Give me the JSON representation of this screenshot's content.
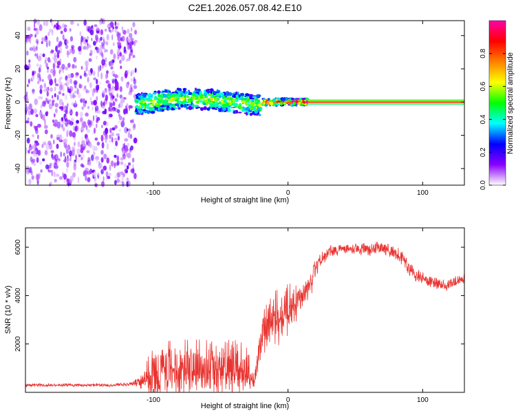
{
  "title": "C2E1.2026.057.08.42.E10",
  "colors": {
    "snr_line": "#e8332f",
    "axis": "#000000",
    "background": "#ffffff"
  },
  "chart_data": [
    {
      "type": "heatmap",
      "name": "spectrogram",
      "xlabel": "Height of straight line (km)",
      "ylabel": "Frequency (Hz)",
      "xlim": [
        -195,
        131
      ],
      "ylim": [
        -50,
        49
      ],
      "x_ticks": [
        -100,
        0,
        100
      ],
      "x_tick_labels": [
        "-100",
        "0",
        "100"
      ],
      "y_ticks": [
        -40,
        -20,
        0,
        20,
        40
      ],
      "y_tick_labels": [
        "-40",
        "-20",
        "0",
        "20",
        "40"
      ],
      "colorbar": {
        "label": "Normalized spectral amplitude",
        "range": [
          0,
          1
        ],
        "ticks": [
          0.0,
          0.2,
          0.4,
          0.6,
          0.8
        ],
        "tick_labels": [
          "0.0",
          "0.2",
          "0.4",
          "0.6",
          "0.8"
        ],
        "colormap": [
          "#ffffff",
          "#8a00ff",
          "#0000ff",
          "#00ffff",
          "#00ff00",
          "#ffff00",
          "#ff8000",
          "#ff0000",
          "#ff00aa"
        ]
      },
      "regions": [
        {
          "name": "noise",
          "x_range": [
            -195,
            -113
          ],
          "f_range": [
            -50,
            49
          ],
          "amplitude": 0.15
        },
        {
          "name": "broad-signal",
          "x_range": [
            -113,
            -20
          ],
          "f_center": 0,
          "f_halfwidth": 6,
          "amplitude": 0.35
        },
        {
          "name": "narrowing-signal",
          "x_range": [
            -20,
            15
          ],
          "f_center": 0,
          "f_halfwidth": 2,
          "amplitude": 0.7
        },
        {
          "name": "steady-tone",
          "x_range": [
            15,
            131
          ],
          "f_center": 0,
          "f_halfwidth": 1.5,
          "amplitude": 0.95
        }
      ]
    },
    {
      "type": "line",
      "name": "snr",
      "xlabel": "Height of straight line (km)",
      "ylabel": "SNR (10 * v/v)",
      "xlim": [
        -195,
        131
      ],
      "ylim": [
        0,
        6800
      ],
      "x_ticks": [
        -100,
        0,
        100
      ],
      "x_tick_labels": [
        "-100",
        "0",
        "100"
      ],
      "y_ticks": [
        2000,
        4000,
        6000
      ],
      "y_tick_labels": [
        "2000",
        "4000",
        "6000"
      ],
      "series": [
        {
          "name": "SNR",
          "x": [
            -195,
            -160,
            -130,
            -115,
            -108,
            -100,
            -85,
            -70,
            -55,
            -40,
            -30,
            -25,
            -20,
            -15,
            -10,
            -5,
            0,
            5,
            10,
            15,
            20,
            25,
            30,
            40,
            50,
            60,
            65,
            70,
            75,
            80,
            85,
            90,
            95,
            100,
            110,
            120,
            131
          ],
          "y": [
            300,
            300,
            300,
            350,
            500,
            700,
            1000,
            1050,
            1000,
            950,
            950,
            400,
            2500,
            2800,
            3000,
            3200,
            3500,
            3600,
            4000,
            4200,
            5000,
            5500,
            5800,
            5950,
            5950,
            5900,
            6000,
            5950,
            5850,
            5700,
            5600,
            5100,
            4900,
            4700,
            4500,
            4450,
            4700
          ],
          "noise": [
            80,
            80,
            80,
            100,
            400,
            1400,
            1500,
            1400,
            1300,
            1300,
            1100,
            300,
            1200,
            1300,
            1300,
            1200,
            1200,
            1100,
            900,
            700,
            500,
            400,
            300,
            250,
            250,
            300,
            350,
            350,
            300,
            350,
            400,
            400,
            350,
            350,
            300,
            300,
            250
          ]
        }
      ]
    }
  ]
}
